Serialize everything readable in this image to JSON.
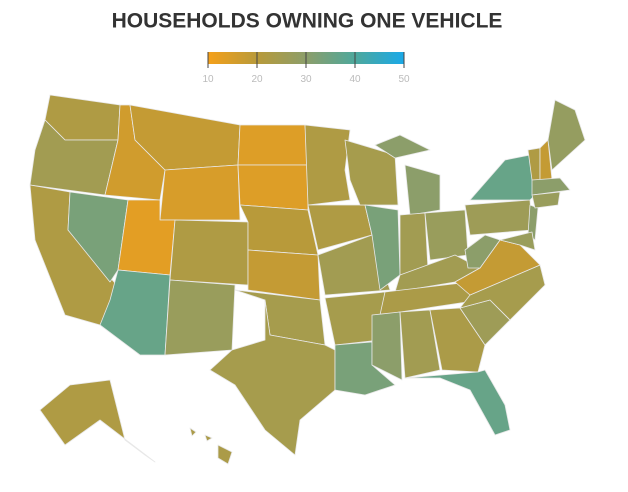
{
  "title": "HOUSEHOLDS OWNING ONE VEHICLE",
  "legend": {
    "lim": [
      10,
      50
    ],
    "ticks": [
      10,
      20,
      30,
      40,
      50
    ],
    "colors": [
      "#f5a01a",
      "#b89a3a",
      "#8c9e6a",
      "#4ea89c",
      "#1aa9e8"
    ]
  },
  "values": [
    22,
    25,
    22,
    33,
    16,
    18,
    15,
    13,
    36,
    22,
    27,
    14,
    14,
    20,
    18,
    24,
    24,
    22,
    22,
    25,
    24,
    33,
    24,
    33,
    30,
    25,
    27,
    25,
    23,
    30,
    25,
    23,
    36,
    26,
    24,
    18,
    30,
    26,
    36,
    30,
    27,
    22,
    18,
    28,
    30,
    27,
    22,
    23
  ]
}
